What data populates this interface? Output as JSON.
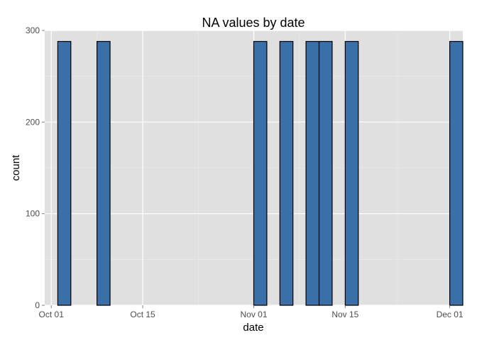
{
  "chart_data": {
    "type": "bar",
    "title": "NA values by date",
    "xlabel": "date",
    "ylabel": "count",
    "x_axis": {
      "type": "date",
      "range": [
        "2012-09-30",
        "2012-12-03"
      ],
      "ticks": [
        {
          "date": "2012-10-01",
          "label": "Oct 01"
        },
        {
          "date": "2012-10-15",
          "label": "Oct 15"
        },
        {
          "date": "2012-11-01",
          "label": "Nov 01"
        },
        {
          "date": "2012-11-15",
          "label": "Nov 15"
        },
        {
          "date": "2012-12-01",
          "label": "Dec 01"
        }
      ]
    },
    "y_axis": {
      "range": [
        0,
        300
      ],
      "ticks": [
        0,
        100,
        200,
        300
      ]
    },
    "grid": true,
    "bin_width_days": 2,
    "bins": [
      {
        "date": "2012-09-30",
        "count": 0
      },
      {
        "date": "2012-10-02",
        "count": 288
      },
      {
        "date": "2012-10-04",
        "count": 0
      },
      {
        "date": "2012-10-06",
        "count": 0
      },
      {
        "date": "2012-10-08",
        "count": 288
      },
      {
        "date": "2012-10-10",
        "count": 0
      },
      {
        "date": "2012-10-12",
        "count": 0
      },
      {
        "date": "2012-10-14",
        "count": 0
      },
      {
        "date": "2012-10-16",
        "count": 0
      },
      {
        "date": "2012-10-18",
        "count": 0
      },
      {
        "date": "2012-10-20",
        "count": 0
      },
      {
        "date": "2012-10-22",
        "count": 0
      },
      {
        "date": "2012-10-24",
        "count": 0
      },
      {
        "date": "2012-10-26",
        "count": 0
      },
      {
        "date": "2012-10-28",
        "count": 0
      },
      {
        "date": "2012-10-30",
        "count": 0
      },
      {
        "date": "2012-11-01",
        "count": 288
      },
      {
        "date": "2012-11-03",
        "count": 0
      },
      {
        "date": "2012-11-05",
        "count": 288
      },
      {
        "date": "2012-11-07",
        "count": 0
      },
      {
        "date": "2012-11-09",
        "count": 288
      },
      {
        "date": "2012-11-11",
        "count": 288
      },
      {
        "date": "2012-11-13",
        "count": 0
      },
      {
        "date": "2012-11-15",
        "count": 288
      },
      {
        "date": "2012-11-17",
        "count": 0
      },
      {
        "date": "2012-11-19",
        "count": 0
      },
      {
        "date": "2012-11-21",
        "count": 0
      },
      {
        "date": "2012-11-23",
        "count": 0
      },
      {
        "date": "2012-11-25",
        "count": 0
      },
      {
        "date": "2012-11-27",
        "count": 0
      },
      {
        "date": "2012-11-29",
        "count": 0
      },
      {
        "date": "2012-12-01",
        "count": 288
      }
    ],
    "colors": {
      "bar_fill": "#3B6FA8",
      "bar_outline": "#000000",
      "panel_background": "#E0E0E0",
      "grid_major": "#FFFFFF",
      "grid_minor": "#EBEBEB",
      "tick_text": "#4D4D4D"
    }
  }
}
